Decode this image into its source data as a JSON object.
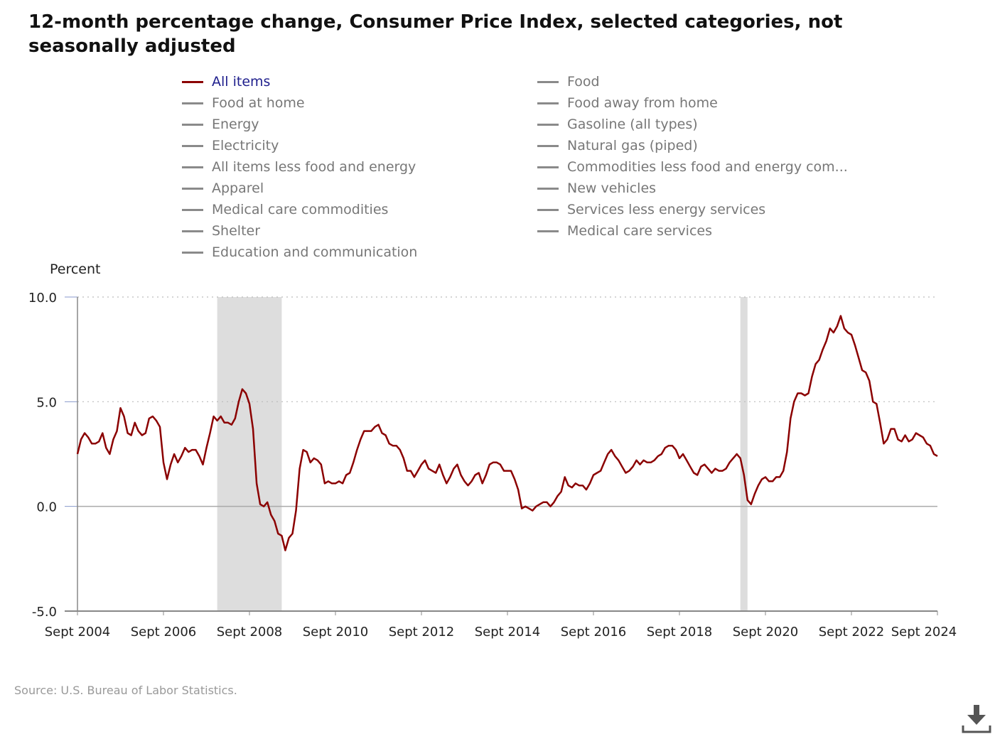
{
  "title": "12-month percentage change, Consumer Price Index, selected categories, not seasonally adjusted",
  "legend": [
    {
      "label": "All items",
      "active": true
    },
    {
      "label": "Food",
      "active": false
    },
    {
      "label": "Food at home",
      "active": false
    },
    {
      "label": "Food away from home",
      "active": false
    },
    {
      "label": "Energy",
      "active": false
    },
    {
      "label": "Gasoline (all types)",
      "active": false
    },
    {
      "label": "Electricity",
      "active": false
    },
    {
      "label": "Natural gas (piped)",
      "active": false
    },
    {
      "label": "All items less food and energy",
      "active": false
    },
    {
      "label": "Commodities less food and energy com...",
      "active": false
    },
    {
      "label": "Apparel",
      "active": false
    },
    {
      "label": "New vehicles",
      "active": false
    },
    {
      "label": "Medical care commodities",
      "active": false
    },
    {
      "label": "Services less energy services",
      "active": false
    },
    {
      "label": "Shelter",
      "active": false
    },
    {
      "label": "Medical care services",
      "active": false
    },
    {
      "label": "Education and communication",
      "active": false
    }
  ],
  "source": "Source: U.S. Bureau of Labor Statistics.",
  "download_icon": "download-icon",
  "colors": {
    "line": "#8b0000",
    "recession": "#dddddd",
    "grid": "#bbbbbb",
    "axis": "#888888"
  },
  "chart_data": {
    "type": "line",
    "ylabel": "Percent",
    "ylim": [
      -5,
      10
    ],
    "yticks": [
      "10.0",
      "5.0",
      "0.0",
      "-5.0"
    ],
    "ytick_values": [
      10,
      5,
      0,
      -5
    ],
    "xlim": [
      "2004-09",
      "2024-09"
    ],
    "xtick_labels": [
      "Sept 2004",
      "Sept 2006",
      "Sept 2008",
      "Sept 2010",
      "Sept 2012",
      "Sept 2014",
      "Sept 2016",
      "Sept 2018",
      "Sept 2020",
      "Sept 2022",
      "Sept 2024"
    ],
    "xtick_values": [
      "2004-09",
      "2006-09",
      "2008-09",
      "2010-09",
      "2012-09",
      "2014-09",
      "2016-09",
      "2018-09",
      "2020-09",
      "2022-09",
      "2024-09"
    ],
    "recessions": [
      [
        "2007-12",
        "2009-06"
      ],
      [
        "2020-02",
        "2020-04"
      ]
    ],
    "series": [
      {
        "name": "All items",
        "points": [
          [
            "2004-09",
            2.5
          ],
          [
            "2004-10",
            3.2
          ],
          [
            "2004-11",
            3.5
          ],
          [
            "2004-12",
            3.3
          ],
          [
            "2005-01",
            3.0
          ],
          [
            "2005-02",
            3.0
          ],
          [
            "2005-03",
            3.1
          ],
          [
            "2005-04",
            3.5
          ],
          [
            "2005-05",
            2.8
          ],
          [
            "2005-06",
            2.5
          ],
          [
            "2005-07",
            3.2
          ],
          [
            "2005-08",
            3.6
          ],
          [
            "2005-09",
            4.7
          ],
          [
            "2005-10",
            4.3
          ],
          [
            "2005-11",
            3.5
          ],
          [
            "2005-12",
            3.4
          ],
          [
            "2006-01",
            4.0
          ],
          [
            "2006-02",
            3.6
          ],
          [
            "2006-03",
            3.4
          ],
          [
            "2006-04",
            3.5
          ],
          [
            "2006-05",
            4.2
          ],
          [
            "2006-06",
            4.3
          ],
          [
            "2006-07",
            4.1
          ],
          [
            "2006-08",
            3.8
          ],
          [
            "2006-09",
            2.1
          ],
          [
            "2006-10",
            1.3
          ],
          [
            "2006-11",
            2.0
          ],
          [
            "2006-12",
            2.5
          ],
          [
            "2007-01",
            2.1
          ],
          [
            "2007-02",
            2.4
          ],
          [
            "2007-03",
            2.8
          ],
          [
            "2007-04",
            2.6
          ],
          [
            "2007-05",
            2.7
          ],
          [
            "2007-06",
            2.7
          ],
          [
            "2007-07",
            2.4
          ],
          [
            "2007-08",
            2.0
          ],
          [
            "2007-09",
            2.8
          ],
          [
            "2007-10",
            3.5
          ],
          [
            "2007-11",
            4.3
          ],
          [
            "2007-12",
            4.1
          ],
          [
            "2008-01",
            4.3
          ],
          [
            "2008-02",
            4.0
          ],
          [
            "2008-03",
            4.0
          ],
          [
            "2008-04",
            3.9
          ],
          [
            "2008-05",
            4.2
          ],
          [
            "2008-06",
            5.0
          ],
          [
            "2008-07",
            5.6
          ],
          [
            "2008-08",
            5.4
          ],
          [
            "2008-09",
            4.9
          ],
          [
            "2008-10",
            3.7
          ],
          [
            "2008-11",
            1.1
          ],
          [
            "2008-12",
            0.1
          ],
          [
            "2009-01",
            0.0
          ],
          [
            "2009-02",
            0.2
          ],
          [
            "2009-03",
            -0.4
          ],
          [
            "2009-04",
            -0.7
          ],
          [
            "2009-05",
            -1.3
          ],
          [
            "2009-06",
            -1.4
          ],
          [
            "2009-07",
            -2.1
          ],
          [
            "2009-08",
            -1.5
          ],
          [
            "2009-09",
            -1.3
          ],
          [
            "2009-10",
            -0.2
          ],
          [
            "2009-11",
            1.8
          ],
          [
            "2009-12",
            2.7
          ],
          [
            "2010-01",
            2.6
          ],
          [
            "2010-02",
            2.1
          ],
          [
            "2010-03",
            2.3
          ],
          [
            "2010-04",
            2.2
          ],
          [
            "2010-05",
            2.0
          ],
          [
            "2010-06",
            1.1
          ],
          [
            "2010-07",
            1.2
          ],
          [
            "2010-08",
            1.1
          ],
          [
            "2010-09",
            1.1
          ],
          [
            "2010-10",
            1.2
          ],
          [
            "2010-11",
            1.1
          ],
          [
            "2010-12",
            1.5
          ],
          [
            "2011-01",
            1.6
          ],
          [
            "2011-02",
            2.1
          ],
          [
            "2011-03",
            2.7
          ],
          [
            "2011-04",
            3.2
          ],
          [
            "2011-05",
            3.6
          ],
          [
            "2011-06",
            3.6
          ],
          [
            "2011-07",
            3.6
          ],
          [
            "2011-08",
            3.8
          ],
          [
            "2011-09",
            3.9
          ],
          [
            "2011-10",
            3.5
          ],
          [
            "2011-11",
            3.4
          ],
          [
            "2011-12",
            3.0
          ],
          [
            "2012-01",
            2.9
          ],
          [
            "2012-02",
            2.9
          ],
          [
            "2012-03",
            2.7
          ],
          [
            "2012-04",
            2.3
          ],
          [
            "2012-05",
            1.7
          ],
          [
            "2012-06",
            1.7
          ],
          [
            "2012-07",
            1.4
          ],
          [
            "2012-08",
            1.7
          ],
          [
            "2012-09",
            2.0
          ],
          [
            "2012-10",
            2.2
          ],
          [
            "2012-11",
            1.8
          ],
          [
            "2012-12",
            1.7
          ],
          [
            "2013-01",
            1.6
          ],
          [
            "2013-02",
            2.0
          ],
          [
            "2013-03",
            1.5
          ],
          [
            "2013-04",
            1.1
          ],
          [
            "2013-05",
            1.4
          ],
          [
            "2013-06",
            1.8
          ],
          [
            "2013-07",
            2.0
          ],
          [
            "2013-08",
            1.5
          ],
          [
            "2013-09",
            1.2
          ],
          [
            "2013-10",
            1.0
          ],
          [
            "2013-11",
            1.2
          ],
          [
            "2013-12",
            1.5
          ],
          [
            "2014-01",
            1.6
          ],
          [
            "2014-02",
            1.1
          ],
          [
            "2014-03",
            1.5
          ],
          [
            "2014-04",
            2.0
          ],
          [
            "2014-05",
            2.1
          ],
          [
            "2014-06",
            2.1
          ],
          [
            "2014-07",
            2.0
          ],
          [
            "2014-08",
            1.7
          ],
          [
            "2014-09",
            1.7
          ],
          [
            "2014-10",
            1.7
          ],
          [
            "2014-11",
            1.3
          ],
          [
            "2014-12",
            0.8
          ],
          [
            "2015-01",
            -0.1
          ],
          [
            "2015-02",
            0.0
          ],
          [
            "2015-03",
            -0.1
          ],
          [
            "2015-04",
            -0.2
          ],
          [
            "2015-05",
            0.0
          ],
          [
            "2015-06",
            0.1
          ],
          [
            "2015-07",
            0.2
          ],
          [
            "2015-08",
            0.2
          ],
          [
            "2015-09",
            0.0
          ],
          [
            "2015-10",
            0.2
          ],
          [
            "2015-11",
            0.5
          ],
          [
            "2015-12",
            0.7
          ],
          [
            "2016-01",
            1.4
          ],
          [
            "2016-02",
            1.0
          ],
          [
            "2016-03",
            0.9
          ],
          [
            "2016-04",
            1.1
          ],
          [
            "2016-05",
            1.0
          ],
          [
            "2016-06",
            1.0
          ],
          [
            "2016-07",
            0.8
          ],
          [
            "2016-08",
            1.1
          ],
          [
            "2016-09",
            1.5
          ],
          [
            "2016-10",
            1.6
          ],
          [
            "2016-11",
            1.7
          ],
          [
            "2016-12",
            2.1
          ],
          [
            "2017-01",
            2.5
          ],
          [
            "2017-02",
            2.7
          ],
          [
            "2017-03",
            2.4
          ],
          [
            "2017-04",
            2.2
          ],
          [
            "2017-05",
            1.9
          ],
          [
            "2017-06",
            1.6
          ],
          [
            "2017-07",
            1.7
          ],
          [
            "2017-08",
            1.9
          ],
          [
            "2017-09",
            2.2
          ],
          [
            "2017-10",
            2.0
          ],
          [
            "2017-11",
            2.2
          ],
          [
            "2017-12",
            2.1
          ],
          [
            "2018-01",
            2.1
          ],
          [
            "2018-02",
            2.2
          ],
          [
            "2018-03",
            2.4
          ],
          [
            "2018-04",
            2.5
          ],
          [
            "2018-05",
            2.8
          ],
          [
            "2018-06",
            2.9
          ],
          [
            "2018-07",
            2.9
          ],
          [
            "2018-08",
            2.7
          ],
          [
            "2018-09",
            2.3
          ],
          [
            "2018-10",
            2.5
          ],
          [
            "2018-11",
            2.2
          ],
          [
            "2018-12",
            1.9
          ],
          [
            "2019-01",
            1.6
          ],
          [
            "2019-02",
            1.5
          ],
          [
            "2019-03",
            1.9
          ],
          [
            "2019-04",
            2.0
          ],
          [
            "2019-05",
            1.8
          ],
          [
            "2019-06",
            1.6
          ],
          [
            "2019-07",
            1.8
          ],
          [
            "2019-08",
            1.7
          ],
          [
            "2019-09",
            1.7
          ],
          [
            "2019-10",
            1.8
          ],
          [
            "2019-11",
            2.1
          ],
          [
            "2019-12",
            2.3
          ],
          [
            "2020-01",
            2.5
          ],
          [
            "2020-02",
            2.3
          ],
          [
            "2020-03",
            1.5
          ],
          [
            "2020-04",
            0.3
          ],
          [
            "2020-05",
            0.1
          ],
          [
            "2020-06",
            0.6
          ],
          [
            "2020-07",
            1.0
          ],
          [
            "2020-08",
            1.3
          ],
          [
            "2020-09",
            1.4
          ],
          [
            "2020-10",
            1.2
          ],
          [
            "2020-11",
            1.2
          ],
          [
            "2020-12",
            1.4
          ],
          [
            "2021-01",
            1.4
          ],
          [
            "2021-02",
            1.7
          ],
          [
            "2021-03",
            2.6
          ],
          [
            "2021-04",
            4.2
          ],
          [
            "2021-05",
            5.0
          ],
          [
            "2021-06",
            5.4
          ],
          [
            "2021-07",
            5.4
          ],
          [
            "2021-08",
            5.3
          ],
          [
            "2021-09",
            5.4
          ],
          [
            "2021-10",
            6.2
          ],
          [
            "2021-11",
            6.8
          ],
          [
            "2021-12",
            7.0
          ],
          [
            "2022-01",
            7.5
          ],
          [
            "2022-02",
            7.9
          ],
          [
            "2022-03",
            8.5
          ],
          [
            "2022-04",
            8.3
          ],
          [
            "2022-05",
            8.6
          ],
          [
            "2022-06",
            9.1
          ],
          [
            "2022-07",
            8.5
          ],
          [
            "2022-08",
            8.3
          ],
          [
            "2022-09",
            8.2
          ],
          [
            "2022-10",
            7.7
          ],
          [
            "2022-11",
            7.1
          ],
          [
            "2022-12",
            6.5
          ],
          [
            "2023-01",
            6.4
          ],
          [
            "2023-02",
            6.0
          ],
          [
            "2023-03",
            5.0
          ],
          [
            "2023-04",
            4.9
          ],
          [
            "2023-05",
            4.0
          ],
          [
            "2023-06",
            3.0
          ],
          [
            "2023-07",
            3.2
          ],
          [
            "2023-08",
            3.7
          ],
          [
            "2023-09",
            3.7
          ],
          [
            "2023-10",
            3.2
          ],
          [
            "2023-11",
            3.1
          ],
          [
            "2023-12",
            3.4
          ],
          [
            "2024-01",
            3.1
          ],
          [
            "2024-02",
            3.2
          ],
          [
            "2024-03",
            3.5
          ],
          [
            "2024-04",
            3.4
          ],
          [
            "2024-05",
            3.3
          ],
          [
            "2024-06",
            3.0
          ],
          [
            "2024-07",
            2.9
          ],
          [
            "2024-08",
            2.5
          ],
          [
            "2024-09",
            2.4
          ]
        ]
      }
    ]
  }
}
